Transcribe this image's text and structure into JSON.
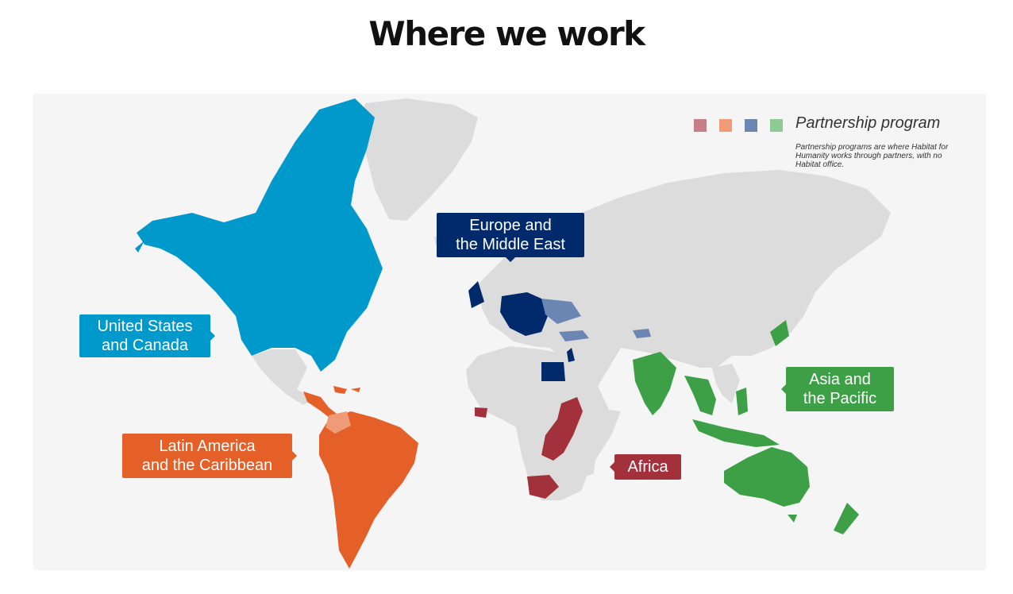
{
  "page": {
    "title": "Where we work"
  },
  "legend": {
    "title": "Partnership program",
    "description": "Partnership programs are where Habitat for Humanity works through partners, with no Habitat office.",
    "swatches": [
      {
        "name": "partnership-africa",
        "color": "#c97d86"
      },
      {
        "name": "partnership-latin-america",
        "color": "#f09b78"
      },
      {
        "name": "partnership-europe",
        "color": "#6b86b3"
      },
      {
        "name": "partnership-asia",
        "color": "#8ccc94"
      }
    ]
  },
  "regions": {
    "us_canada": {
      "line1": "United States",
      "line2": "and Canada",
      "color": "#0099cc"
    },
    "latin_america": {
      "line1": "Latin America",
      "line2": "and the Caribbean",
      "color": "#e55f28"
    },
    "europe_me": {
      "line1": "Europe and",
      "line2": "the Middle East",
      "color": "#002a6b"
    },
    "africa": {
      "line1": "Africa",
      "color": "#a3313c"
    },
    "asia_pacific": {
      "line1": "Asia and",
      "line2": "the Pacific",
      "color": "#3d9f46"
    }
  },
  "colors": {
    "land": "#dcdcdc",
    "ocean": "#f5f5f5"
  }
}
